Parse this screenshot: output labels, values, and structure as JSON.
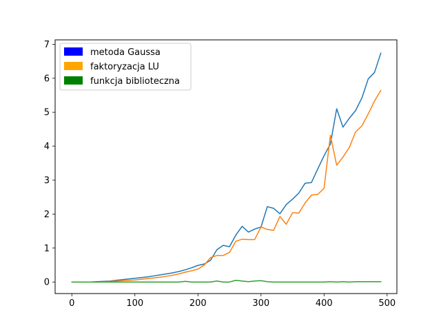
{
  "chart_data": {
    "type": "line",
    "xlim": [
      -26.5,
      515.5
    ],
    "ylim": [
      -0.34,
      7.13
    ],
    "x_ticks": [
      0,
      100,
      200,
      300,
      400,
      500
    ],
    "y_ticks": [
      0,
      1,
      2,
      3,
      4,
      5,
      6,
      7
    ],
    "grid": false,
    "legend_position": "top-left",
    "legend_swatch_colors": [
      "#0000ff",
      "#ffa500",
      "#008000"
    ],
    "series": [
      {
        "name": "metoda Gaussa",
        "color": "#1f77b4",
        "x": [
          0,
          10,
          20,
          30,
          40,
          50,
          60,
          70,
          80,
          90,
          100,
          110,
          120,
          130,
          140,
          150,
          160,
          170,
          180,
          190,
          200,
          210,
          220,
          230,
          240,
          250,
          260,
          270,
          280,
          290,
          300,
          310,
          320,
          330,
          340,
          350,
          360,
          370,
          380,
          390,
          400,
          410,
          420,
          430,
          440,
          450,
          460,
          470,
          480,
          490
        ],
        "y": [
          0.0,
          0.0,
          0.0,
          0.0,
          0.01,
          0.02,
          0.03,
          0.05,
          0.07,
          0.09,
          0.11,
          0.13,
          0.15,
          0.18,
          0.21,
          0.24,
          0.27,
          0.31,
          0.36,
          0.42,
          0.49,
          0.53,
          0.64,
          0.95,
          1.08,
          1.04,
          1.38,
          1.64,
          1.47,
          1.56,
          1.62,
          2.22,
          2.17,
          2.01,
          2.28,
          2.44,
          2.62,
          2.91,
          2.93,
          3.33,
          3.72,
          4.06,
          5.1,
          4.56,
          4.82,
          5.05,
          5.42,
          5.98,
          6.17,
          6.74
        ]
      },
      {
        "name": "faktoryzacja LU",
        "color": "#ff7f0e",
        "x": [
          0,
          10,
          20,
          30,
          40,
          50,
          60,
          70,
          80,
          90,
          100,
          110,
          120,
          130,
          140,
          150,
          160,
          170,
          180,
          190,
          200,
          210,
          220,
          230,
          240,
          250,
          260,
          270,
          280,
          290,
          300,
          310,
          320,
          330,
          340,
          350,
          360,
          370,
          380,
          390,
          400,
          410,
          420,
          430,
          440,
          450,
          460,
          470,
          480,
          490
        ],
        "y": [
          0.0,
          0.0,
          0.0,
          0.0,
          0.0,
          0.01,
          0.02,
          0.03,
          0.04,
          0.05,
          0.06,
          0.08,
          0.1,
          0.12,
          0.14,
          0.17,
          0.2,
          0.24,
          0.29,
          0.33,
          0.38,
          0.5,
          0.72,
          0.78,
          0.78,
          0.87,
          1.2,
          1.26,
          1.25,
          1.25,
          1.62,
          1.55,
          1.52,
          1.93,
          1.7,
          2.04,
          2.03,
          2.33,
          2.56,
          2.58,
          2.76,
          4.32,
          3.44,
          3.68,
          3.96,
          4.42,
          4.6,
          4.95,
          5.33,
          5.64
        ]
      },
      {
        "name": "funkcja biblioteczna",
        "color": "#2ca02c",
        "x": [
          0,
          10,
          20,
          30,
          40,
          50,
          60,
          70,
          80,
          90,
          100,
          110,
          120,
          130,
          140,
          150,
          160,
          170,
          180,
          190,
          200,
          210,
          220,
          230,
          240,
          250,
          260,
          270,
          280,
          290,
          300,
          310,
          320,
          330,
          340,
          350,
          360,
          370,
          380,
          390,
          400,
          410,
          420,
          430,
          440,
          450,
          460,
          470,
          480,
          490
        ],
        "y": [
          0.0,
          0.0,
          0.0,
          0.0,
          0.0,
          0.0,
          0.0,
          0.0,
          0.0,
          0.0,
          0.0,
          0.0,
          0.0,
          0.0,
          0.0,
          0.0,
          0.0,
          0.0,
          0.02,
          0.0,
          0.0,
          0.0,
          0.0,
          0.03,
          0.0,
          0.0,
          0.05,
          0.03,
          0.01,
          0.03,
          0.04,
          0.01,
          0.0,
          0.0,
          0.0,
          0.0,
          0.0,
          0.0,
          0.0,
          0.0,
          0.0,
          0.01,
          0.0,
          0.01,
          0.0,
          0.01,
          0.01,
          0.01,
          0.01,
          0.01
        ]
      }
    ]
  }
}
